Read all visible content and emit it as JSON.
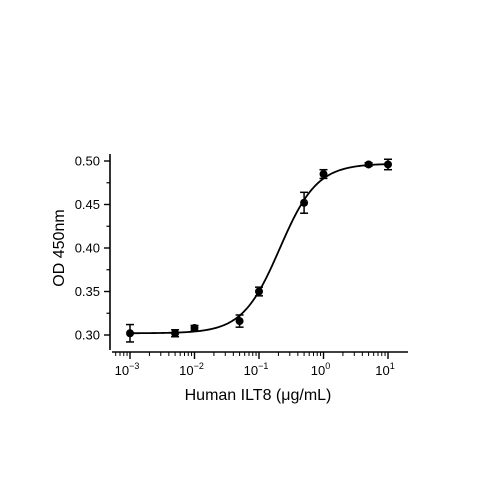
{
  "chart_data": {
    "type": "scatter",
    "xlabel": "Human ILT8 (μg/mL)",
    "ylabel": "OD 450nm",
    "x_scale": "log",
    "xlim": [
      0.0006,
      15
    ],
    "ylim": [
      0.29,
      0.5
    ],
    "x_ticks": [
      {
        "value": 0.001,
        "base": "10",
        "exp": "-3"
      },
      {
        "value": 0.01,
        "base": "10",
        "exp": "-2"
      },
      {
        "value": 0.1,
        "base": "10",
        "exp": "-1"
      },
      {
        "value": 1,
        "base": "10",
        "exp": "0"
      },
      {
        "value": 10,
        "base": "10",
        "exp": "1"
      }
    ],
    "y_ticks": [
      {
        "value": 0.3,
        "label": "0.30"
      },
      {
        "value": 0.35,
        "label": "0.35"
      },
      {
        "value": 0.4,
        "label": "0.40"
      },
      {
        "value": 0.45,
        "label": "0.45"
      },
      {
        "value": 0.5,
        "label": "0.50"
      }
    ],
    "points": [
      {
        "x": 0.001,
        "y": 0.302,
        "err": 0.01
      },
      {
        "x": 0.005,
        "y": 0.302,
        "err": 0.004
      },
      {
        "x": 0.01,
        "y": 0.308,
        "err": 0.003
      },
      {
        "x": 0.05,
        "y": 0.316,
        "err": 0.007
      },
      {
        "x": 0.1,
        "y": 0.35,
        "err": 0.005
      },
      {
        "x": 0.5,
        "y": 0.452,
        "err": 0.012
      },
      {
        "x": 1,
        "y": 0.485,
        "err": 0.005
      },
      {
        "x": 5,
        "y": 0.496,
        "err": 0.002
      },
      {
        "x": 10,
        "y": 0.496,
        "err": 0.006
      }
    ],
    "fit_curve": {
      "model": "4PL",
      "bottom": 0.302,
      "top": 0.497,
      "ec50": 0.21,
      "hill": 1.5
    },
    "grid": false,
    "legend": "none",
    "color": "#000000"
  }
}
